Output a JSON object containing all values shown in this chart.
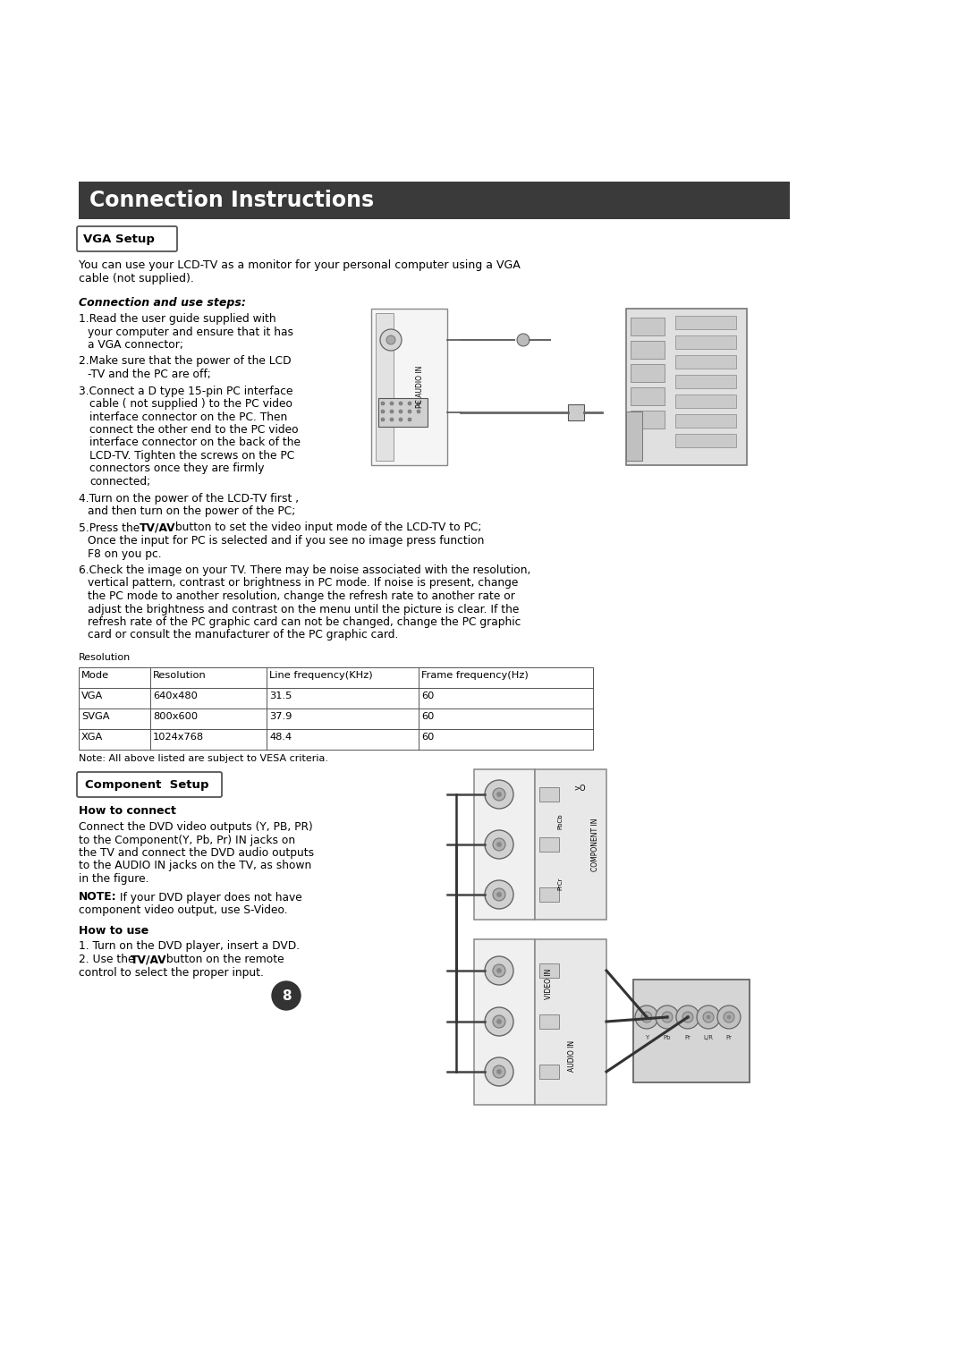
{
  "bg_color": "#ffffff",
  "title": "Connection Instructions",
  "title_bg": "#3a3a3a",
  "title_color": "#ffffff",
  "title_fontsize": 17,
  "vga_setup_label": "VGA Setup",
  "component_setup_label": "Component  Setup",
  "vga_intro": "You can use your LCD-TV as a monitor for your personal computer using a VGA\ncable (not supplied).",
  "connection_steps_header": "Connection and use steps:",
  "resolution_label": "Resolution",
  "table_headers": [
    "Mode",
    "Resolution",
    "Line frequency(KHz)",
    "Frame frequency(Hz)"
  ],
  "table_data": [
    [
      "VGA",
      "640x480",
      "31.5",
      "60"
    ],
    [
      "SVGA",
      "800x600",
      "37.9",
      "60"
    ],
    [
      "XGA",
      "1024x768",
      "48.4",
      "60"
    ]
  ],
  "table_note": "Note: All above listed are subject to VESA criteria.",
  "component_how_to_connect": "How to connect",
  "component_connect_text": "Connect the DVD video outputs (Y, PB, PR)\nto the Component(Y, Pb, Pr) IN jacks on\nthe TV and connect the DVD audio outputs\nto the AUDIO IN jacks on the TV, as shown\nin the figure.",
  "component_how_to_use": "How to use",
  "page_number": "8"
}
